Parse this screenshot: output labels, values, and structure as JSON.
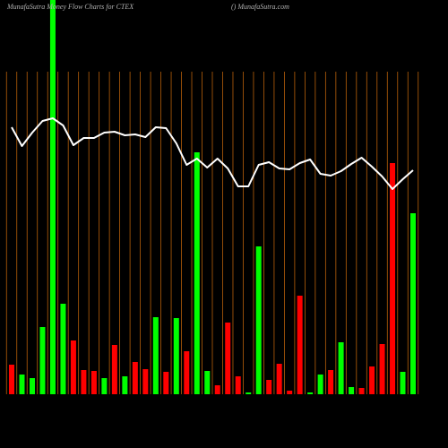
{
  "chart_data": {
    "type": "bar",
    "title": "MunafaSutra  Money Flow  Charts for CTEX",
    "subtitle": "() MunafaSutra.com",
    "values": [
      33,
      22,
      18,
      75,
      460,
      101,
      60,
      27,
      26,
      18,
      55,
      20,
      36,
      28,
      86,
      25,
      85,
      48,
      270,
      26,
      10,
      80,
      20,
      2,
      165,
      16,
      34,
      4,
      110,
      2,
      22,
      27,
      58,
      8,
      7,
      31,
      56,
      258,
      25,
      202
    ],
    "colors": [
      "#ff0000",
      "#00ff00",
      "#00ff00",
      "#00ff00",
      "#00ff00",
      "#00ff00",
      "#ff0000",
      "#ff0000",
      "#ff0000",
      "#00ff00",
      "#ff0000",
      "#00ff00",
      "#ff0000",
      "#ff0000",
      "#00ff00",
      "#ff0000",
      "#00ff00",
      "#ff0000",
      "#00ff00",
      "#00ff00",
      "#ff0000",
      "#ff0000",
      "#ff0000",
      "#00ff00",
      "#00ff00",
      "#ff0000",
      "#ff0000",
      "#ff0000",
      "#ff0000",
      "#00ff00",
      "#00ff00",
      "#ff0000",
      "#00ff00",
      "#00ff00",
      "#ff0000",
      "#ff0000",
      "#ff0000",
      "#ff0000",
      "#00ff00",
      "#00ff00"
    ],
    "line": {
      "color": "#ffffff",
      "values": [
        298,
        277,
        292,
        305,
        308,
        300,
        278,
        286,
        286,
        292,
        293,
        289,
        290,
        287,
        298,
        297,
        280,
        256,
        263,
        253,
        263,
        252,
        232,
        232,
        256,
        259,
        252,
        251,
        258,
        262,
        246,
        244,
        249,
        257,
        264,
        254,
        243,
        229,
        240,
        250
      ]
    },
    "grid_color": "#b8600a",
    "ylim": [
      0,
      440
    ]
  }
}
